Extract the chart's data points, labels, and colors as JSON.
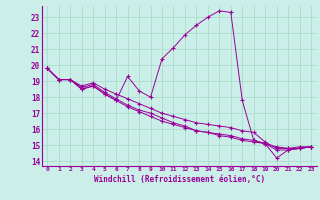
{
  "xlabel": "Windchill (Refroidissement éolien,°C)",
  "ylabel": "",
  "background_color": "#cceee8",
  "line_color": "#990099",
  "grid_color": "#aaddcc",
  "xlim": [
    -0.5,
    23.5
  ],
  "ylim": [
    13.7,
    23.7
  ],
  "xticks": [
    0,
    1,
    2,
    3,
    4,
    5,
    6,
    7,
    8,
    9,
    10,
    11,
    12,
    13,
    14,
    15,
    16,
    17,
    18,
    19,
    20,
    21,
    22,
    23
  ],
  "yticks": [
    14,
    15,
    16,
    17,
    18,
    19,
    20,
    21,
    22,
    23
  ],
  "series": [
    [
      19.8,
      19.1,
      19.1,
      18.5,
      18.7,
      18.2,
      17.8,
      19.3,
      18.4,
      18.0,
      20.4,
      21.1,
      21.9,
      22.5,
      23.0,
      23.4,
      23.3,
      17.8,
      15.3,
      15.1,
      14.2,
      14.7,
      14.8,
      14.9
    ],
    [
      19.8,
      19.1,
      19.1,
      18.6,
      18.8,
      18.3,
      17.9,
      17.5,
      17.2,
      17.0,
      16.7,
      16.4,
      16.2,
      15.9,
      15.8,
      15.6,
      15.5,
      15.3,
      15.2,
      15.1,
      14.9,
      14.8,
      14.8,
      14.9
    ],
    [
      19.8,
      19.1,
      19.1,
      18.7,
      18.9,
      18.5,
      18.2,
      17.9,
      17.6,
      17.3,
      17.0,
      16.8,
      16.6,
      16.4,
      16.3,
      16.2,
      16.1,
      15.9,
      15.8,
      15.2,
      14.8,
      14.8,
      14.9,
      14.9
    ],
    [
      19.8,
      19.1,
      19.1,
      18.5,
      18.7,
      18.2,
      17.8,
      17.4,
      17.1,
      16.8,
      16.5,
      16.3,
      16.1,
      15.9,
      15.8,
      15.7,
      15.6,
      15.4,
      15.3,
      15.1,
      14.7,
      14.7,
      14.8,
      14.9
    ]
  ]
}
